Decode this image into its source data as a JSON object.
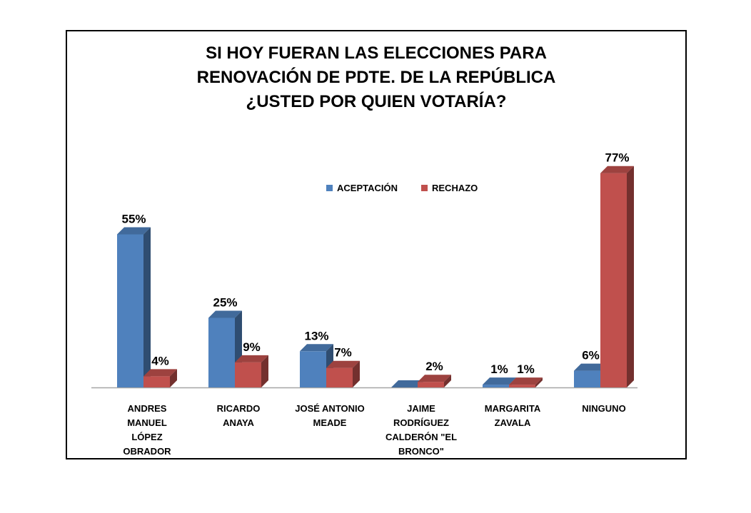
{
  "chart_data": {
    "type": "bar",
    "title_lines": [
      "SI HOY FUERAN LAS ELECCIONES PARA",
      "RENOVACIÓN DE PDTE. DE LA REPÚBLICA",
      "¿USTED POR QUIEN VOTARÍA?"
    ],
    "categories": [
      "ANDRES\nMANUEL\nLÓPEZ\nOBRADOR",
      "RICARDO\nANAYA",
      "JOSÉ ANTONIO\nMEADE",
      "JAIME\nRODRÍGUEZ\nCALDERÓN \"EL\nBRONCO\"",
      "MARGARITA\nZAVALA",
      "NINGUNO"
    ],
    "series": [
      {
        "name": "ACEPTACIÓN",
        "values": [
          55,
          25,
          13,
          0,
          1,
          6
        ],
        "labels": [
          "55%",
          "25%",
          "13%",
          "",
          "1%",
          "6%"
        ],
        "color": "#4F81BD"
      },
      {
        "name": "RECHAZO",
        "values": [
          4,
          9,
          7,
          2,
          1,
          77
        ],
        "labels": [
          "4%",
          "9%",
          "7%",
          "2%",
          "1%",
          "77%"
        ],
        "color": "#C0504D"
      }
    ],
    "legend_position": "top-center",
    "grid": false,
    "ylim": [
      0,
      80
    ]
  }
}
